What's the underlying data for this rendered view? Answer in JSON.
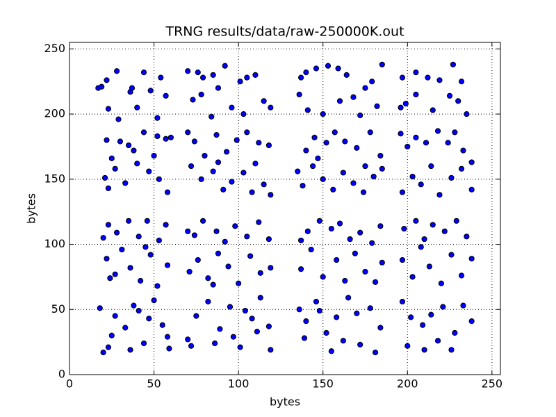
{
  "chart_data": {
    "type": "scatter",
    "title": "TRNG results/data/raw-250000K.out",
    "x_label": "bytes",
    "y_label": "bytes",
    "color": "#0000ff",
    "edge_color": "#000000",
    "grid": true,
    "xlim": [
      0,
      255
    ],
    "ylim": [
      0,
      255
    ],
    "xticks": [
      0,
      50,
      100,
      150,
      200,
      250
    ],
    "yticks": [
      0,
      50,
      100,
      150,
      200,
      250
    ],
    "x": [
      17,
      19,
      22,
      23,
      28,
      29,
      36,
      37,
      44,
      48,
      54,
      57,
      52,
      40,
      70,
      76,
      79,
      85,
      92,
      73,
      78,
      88,
      96,
      101,
      105,
      110,
      115,
      103,
      119,
      84,
      137,
      140,
      146,
      153,
      159,
      164,
      175,
      185,
      179,
      141,
      150,
      160,
      168,
      172,
      182,
      136,
      197,
      205,
      212,
      219,
      227,
      232,
      199,
      205,
      215,
      225,
      230,
      235,
      196,
      21,
      22,
      25,
      30,
      38,
      44,
      52,
      57,
      60,
      23,
      27,
      33,
      40,
      47,
      53,
      58,
      35,
      50,
      70,
      74,
      80,
      87,
      93,
      99,
      105,
      112,
      118,
      72,
      78,
      85,
      91,
      96,
      103,
      108,
      115,
      119,
      88,
      110,
      135,
      140,
      145,
      152,
      157,
      163,
      170,
      178,
      184,
      138,
      144,
      150,
      156,
      162,
      168,
      174,
      180,
      185,
      147,
      175,
      196,
      200,
      205,
      211,
      218,
      224,
      228,
      233,
      238,
      197,
      203,
      208,
      214,
      219,
      226,
      232,
      238,
      20,
      23,
      28,
      35,
      41,
      46,
      53,
      57,
      22,
      27,
      31,
      36,
      42,
      48,
      52,
      58,
      24,
      45,
      70,
      74,
      79,
      87,
      92,
      98,
      105,
      112,
      118,
      71,
      76,
      82,
      88,
      94,
      100,
      107,
      113,
      119,
      85,
      137,
      141,
      148,
      155,
      160,
      166,
      172,
      179,
      184,
      137,
      143,
      150,
      158,
      163,
      169,
      175,
      181,
      185,
      198,
      205,
      210,
      215,
      222,
      229,
      235,
      197,
      203,
      208,
      213,
      220,
      226,
      232,
      238,
      18,
      20,
      23,
      27,
      33,
      38,
      44,
      50,
      55,
      58,
      25,
      36,
      47,
      59,
      41,
      70,
      75,
      82,
      89,
      95,
      101,
      108,
      113,
      118,
      72,
      86,
      97,
      104,
      111,
      119,
      136,
      140,
      146,
      152,
      158,
      165,
      172,
      178,
      184,
      139,
      148,
      155,
      162,
      170,
      181,
      197,
      202,
      209,
      214,
      221,
      228,
      233,
      238,
      200,
      210,
      218,
      226
    ],
    "values": [
      220,
      221,
      226,
      204,
      233,
      196,
      217,
      220,
      232,
      218,
      228,
      214,
      197,
      205,
      233,
      232,
      228,
      230,
      237,
      211,
      215,
      220,
      205,
      225,
      228,
      230,
      210,
      200,
      205,
      198,
      228,
      232,
      235,
      237,
      235,
      230,
      220,
      238,
      225,
      203,
      200,
      210,
      213,
      199,
      206,
      215,
      228,
      232,
      228,
      226,
      238,
      225,
      208,
      215,
      203,
      214,
      210,
      200,
      205,
      151,
      180,
      166,
      179,
      172,
      186,
      183,
      181,
      182,
      143,
      158,
      147,
      162,
      156,
      150,
      140,
      176,
      168,
      186,
      179,
      168,
      184,
      171,
      180,
      186,
      178,
      176,
      160,
      150,
      156,
      142,
      148,
      155,
      140,
      146,
      138,
      163,
      162,
      156,
      172,
      182,
      178,
      186,
      179,
      174,
      186,
      168,
      145,
      160,
      150,
      142,
      155,
      147,
      140,
      152,
      158,
      166,
      160,
      185,
      175,
      182,
      178,
      187,
      178,
      186,
      172,
      163,
      140,
      152,
      146,
      160,
      138,
      151,
      158,
      142,
      105,
      115,
      109,
      118,
      106,
      118,
      103,
      115,
      89,
      77,
      96,
      82,
      72,
      92,
      68,
      84,
      74,
      98,
      110,
      107,
      118,
      110,
      102,
      114,
      106,
      117,
      104,
      79,
      88,
      74,
      93,
      83,
      70,
      91,
      78,
      82,
      69,
      103,
      110,
      118,
      112,
      116,
      104,
      109,
      101,
      114,
      81,
      96,
      75,
      88,
      72,
      93,
      79,
      71,
      86,
      112,
      118,
      104,
      115,
      110,
      118,
      106,
      88,
      75,
      98,
      83,
      70,
      92,
      76,
      89,
      51,
      17,
      21,
      45,
      36,
      53,
      24,
      57,
      38,
      29,
      30,
      19,
      43,
      20,
      49,
      27,
      45,
      56,
      35,
      52,
      21,
      43,
      59,
      37,
      22,
      24,
      29,
      49,
      33,
      19,
      50,
      41,
      56,
      32,
      44,
      59,
      23,
      51,
      36,
      28,
      49,
      18,
      26,
      47,
      17,
      56,
      44,
      38,
      46,
      52,
      32,
      53,
      41,
      22,
      19,
      26,
      19
    ]
  }
}
